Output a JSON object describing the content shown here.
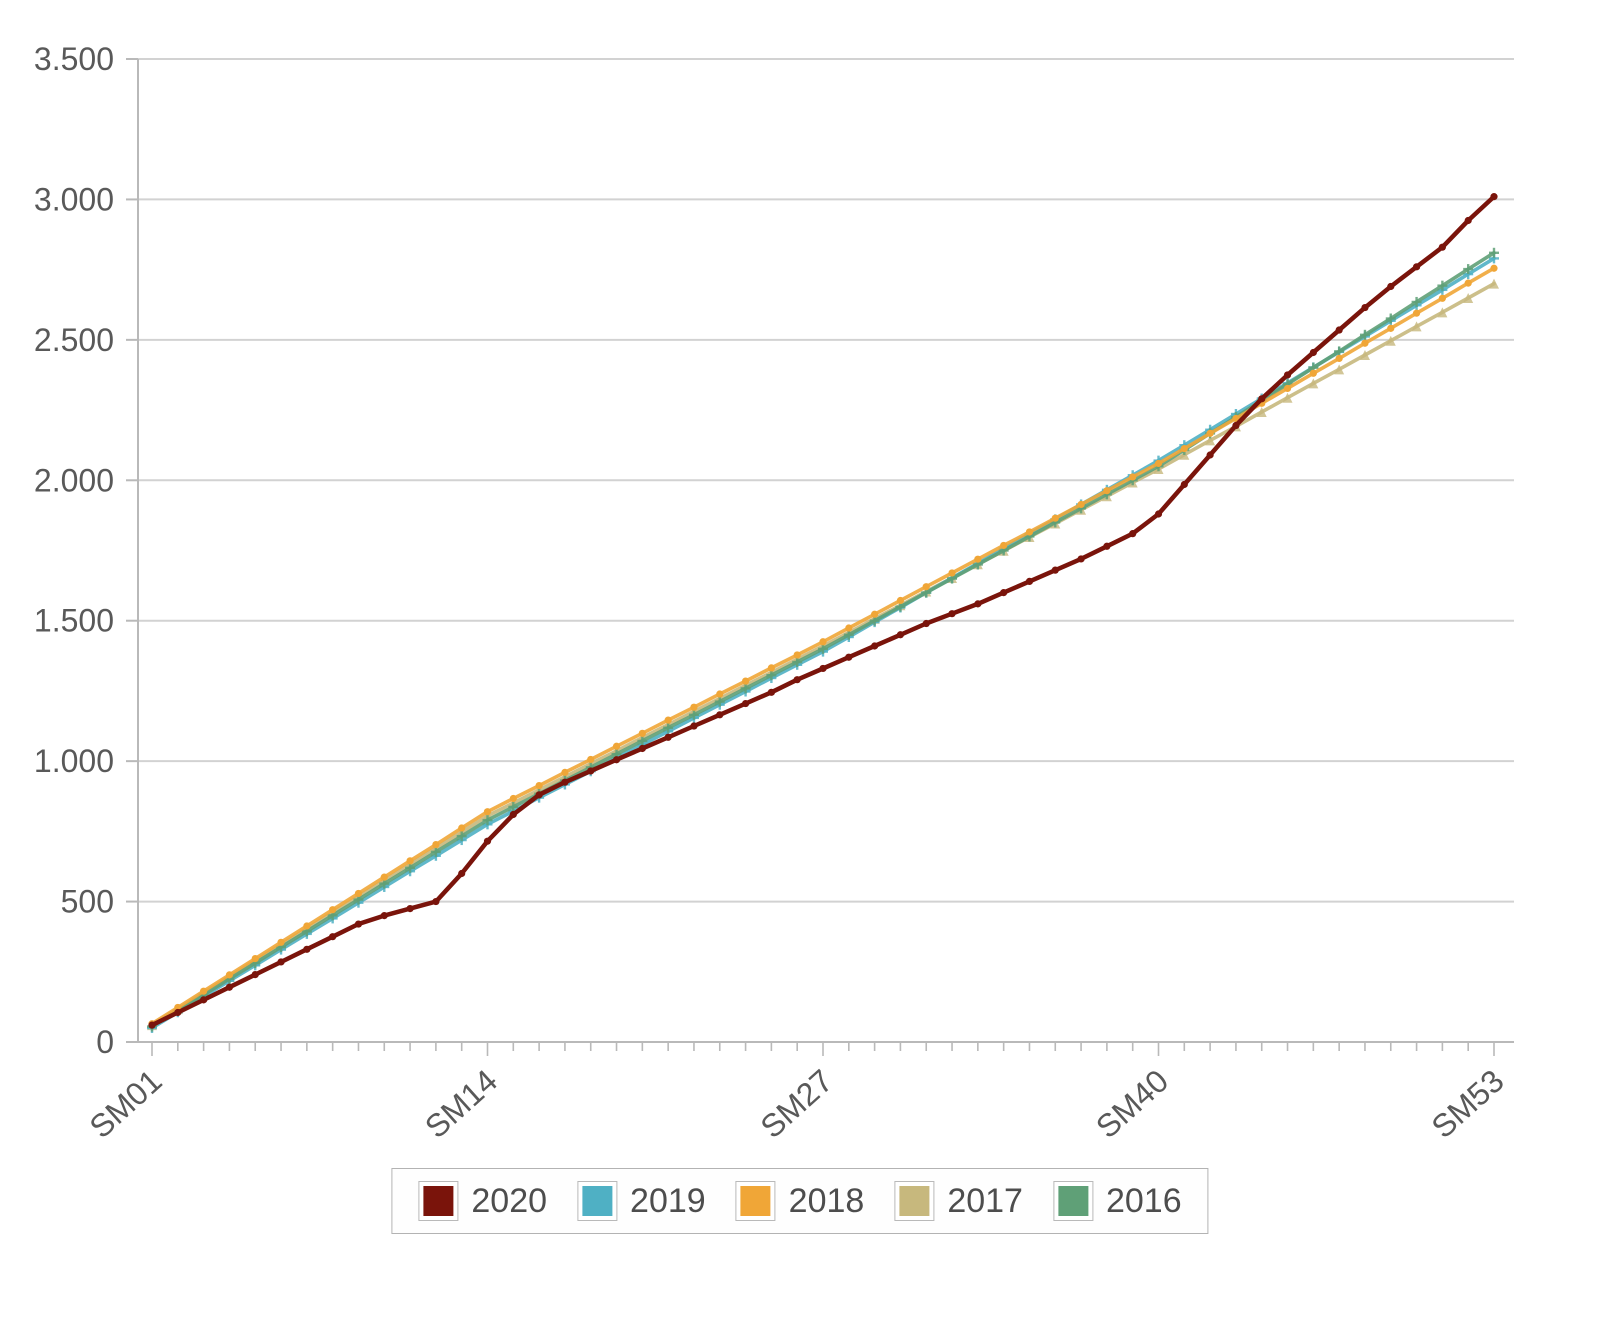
{
  "chart_data": {
    "type": "line",
    "n_weeks": 53,
    "ylim": [
      0,
      3500
    ],
    "y_tick_values": [
      0,
      500,
      1000,
      1500,
      2000,
      2500,
      3000,
      3500
    ],
    "y_tick_labels": [
      "0",
      "500",
      "1.000",
      "1.500",
      "2.000",
      "2.500",
      "3.000",
      "3.500"
    ],
    "x_tick_weeks": [
      1,
      14,
      27,
      40,
      53
    ],
    "x_tick_labels": [
      "SM01",
      "SM14",
      "SM27",
      "SM40",
      "SM53"
    ],
    "grid": "horizontal",
    "legend_position": "bottom",
    "axis_color": "#b9b9b9",
    "grid_color": "#d2d2d2",
    "tick_label_color": "#595959",
    "series": [
      {
        "name": "2020",
        "color": "#7a140b",
        "marker": "dot",
        "values": [
          60,
          105,
          150,
          195,
          240,
          285,
          330,
          375,
          420,
          450,
          475,
          500,
          600,
          715,
          810,
          880,
          925,
          965,
          1005,
          1045,
          1085,
          1125,
          1165,
          1205,
          1245,
          1290,
          1330,
          1370,
          1410,
          1450,
          1490,
          1525,
          1560,
          1600,
          1640,
          1680,
          1720,
          1765,
          1810,
          1880,
          1985,
          2090,
          2195,
          2290,
          2375,
          2455,
          2535,
          2615,
          2690,
          2760,
          2830,
          2925,
          3010
        ]
      },
      {
        "name": "2019",
        "color": "#4fb0c4",
        "marker": "plus",
        "values": [
          50,
          106,
          162,
          218,
          273,
          329,
          385,
          440,
          496,
          552,
          608,
          663,
          719,
          775,
          822,
          870,
          917,
          964,
          1012,
          1059,
          1106,
          1154,
          1201,
          1248,
          1296,
          1343,
          1390,
          1442,
          1495,
          1547,
          1600,
          1652,
          1704,
          1757,
          1809,
          1861,
          1914,
          1966,
          2018,
          2070,
          2125,
          2180,
          2236,
          2291,
          2346,
          2402,
          2457,
          2512,
          2568,
          2623,
          2678,
          2734,
          2790
        ]
      },
      {
        "name": "2018",
        "color": "#f0a637",
        "marker": "dot",
        "values": [
          65,
          123,
          181,
          239,
          297,
          355,
          413,
          471,
          529,
          587,
          645,
          703,
          762,
          820,
          867,
          913,
          960,
          1006,
          1053,
          1099,
          1146,
          1192,
          1239,
          1285,
          1332,
          1378,
          1425,
          1474,
          1523,
          1572,
          1621,
          1670,
          1719,
          1768,
          1816,
          1865,
          1914,
          1963,
          2012,
          2060,
          2113,
          2167,
          2220,
          2274,
          2327,
          2381,
          2434,
          2488,
          2541,
          2595,
          2648,
          2702,
          2755
        ]
      },
      {
        "name": "2017",
        "color": "#c7b87d",
        "marker": "triangle",
        "values": [
          60,
          117,
          174,
          232,
          289,
          346,
          403,
          461,
          518,
          575,
          632,
          690,
          747,
          805,
          851,
          898,
          944,
          991,
          1037,
          1084,
          1130,
          1177,
          1223,
          1270,
          1316,
          1363,
          1410,
          1458,
          1507,
          1555,
          1604,
          1652,
          1701,
          1749,
          1798,
          1846,
          1895,
          1943,
          1992,
          2040,
          2091,
          2142,
          2192,
          2243,
          2294,
          2345,
          2395,
          2446,
          2497,
          2548,
          2598,
          2649,
          2700
        ]
      },
      {
        "name": "2016",
        "color": "#5fa077",
        "marker": "plus",
        "values": [
          55,
          112,
          168,
          225,
          281,
          338,
          394,
          451,
          507,
          564,
          620,
          677,
          733,
          790,
          837,
          884,
          931,
          978,
          1025,
          1072,
          1119,
          1165,
          1212,
          1259,
          1306,
          1353,
          1400,
          1450,
          1500,
          1550,
          1600,
          1650,
          1700,
          1750,
          1800,
          1850,
          1900,
          1950,
          2000,
          2050,
          2108,
          2167,
          2225,
          2284,
          2342,
          2401,
          2459,
          2518,
          2576,
          2635,
          2693,
          2752,
          2810
        ]
      }
    ]
  },
  "legend": {
    "items": [
      "2020",
      "2019",
      "2018",
      "2017",
      "2016"
    ]
  }
}
